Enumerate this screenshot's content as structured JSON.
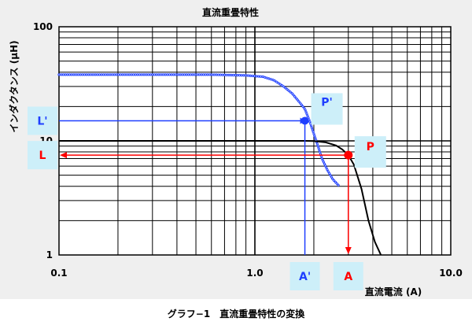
{
  "caption": "グラフ−1　直流重畳特性の変換",
  "chart_data": {
    "type": "line",
    "title": "直流重畳特性",
    "xlabel": "直流電流 (A)",
    "ylabel": "インダクタンス (μH)",
    "x_scale": "log",
    "y_scale": "log",
    "xlim": [
      0.1,
      10.0
    ],
    "ylim": [
      1,
      100
    ],
    "grid": true,
    "x_ticks": [
      "0.1",
      "1.0",
      "10.0"
    ],
    "y_ticks": [
      "1",
      "10",
      "100"
    ],
    "series": [
      {
        "name": "",
        "color": "#1f3fff",
        "style": "circle-markers",
        "x": [
          0.1,
          0.3,
          0.6,
          0.9,
          1.1,
          1.25,
          1.4,
          1.55,
          1.7,
          1.8,
          1.9,
          2.0,
          2.1,
          2.2,
          2.35,
          2.5,
          2.7
        ],
        "y": [
          38,
          38,
          38,
          37.5,
          36.5,
          34,
          30,
          26,
          21.5,
          19,
          15,
          11.5,
          9,
          7,
          5.5,
          4.6,
          4.0
        ]
      },
      {
        "name": "",
        "color": "#000000",
        "style": "solid",
        "x": [
          0.1,
          0.5,
          1.0,
          1.5,
          1.8,
          2.0,
          2.3,
          2.6,
          2.8,
          3.0,
          3.2,
          3.5,
          3.8,
          4.1,
          4.4
        ],
        "y": [
          10,
          10,
          10,
          10,
          10,
          9.95,
          9.7,
          9.1,
          8.4,
          7.5,
          6.2,
          3.8,
          2.0,
          1.3,
          1.0
        ]
      }
    ],
    "annotations": [
      {
        "label": "P'",
        "x": 1.8,
        "y": 15,
        "point_color": "#1f3fff",
        "proj_x": "A'",
        "proj_y": "L'"
      },
      {
        "label": "P",
        "x": 3.0,
        "y": 7.5,
        "point_color": "#ff0000",
        "proj_x": "A",
        "proj_y": "L"
      }
    ]
  },
  "colors": {
    "blue": "#1f3fff",
    "red": "#ff0000",
    "label_bg": "#cdeff9",
    "plot_bg": "#ffffff",
    "frame_bg": "#efefef"
  }
}
